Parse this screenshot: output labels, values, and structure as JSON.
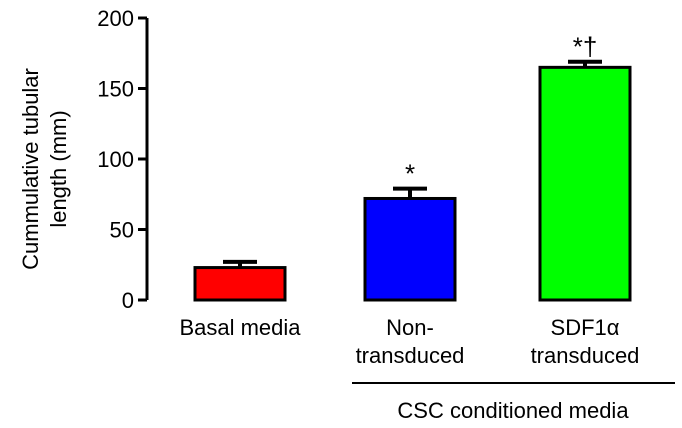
{
  "chart_data": {
    "type": "bar",
    "ylabel_lines": [
      "Cummulative tubular",
      "length (mm)"
    ],
    "ylim": [
      0,
      200
    ],
    "yticks": [
      0,
      50,
      100,
      150,
      200
    ],
    "categories": [
      {
        "lines": [
          "Basal media"
        ]
      },
      {
        "lines": [
          "Non-",
          "transduced"
        ]
      },
      {
        "lines": [
          "SDF1α",
          "transduced"
        ]
      }
    ],
    "values": [
      23,
      72,
      165
    ],
    "errors": [
      4,
      7,
      4
    ],
    "colors": [
      "#ff0000",
      "#0000ff",
      "#00ff00"
    ],
    "annotations": [
      "",
      "*",
      "*†"
    ],
    "group_label": "CSC conditioned media",
    "grid": false,
    "legend": "none"
  }
}
